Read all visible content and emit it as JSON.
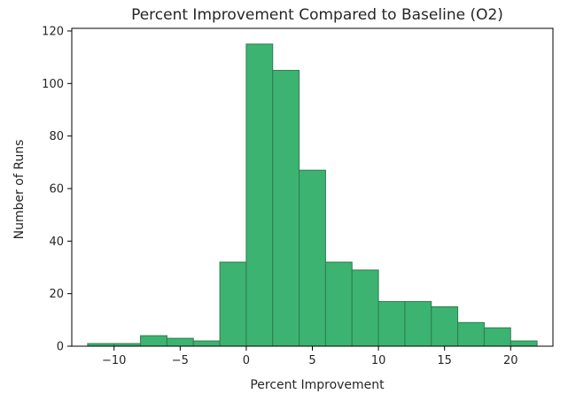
{
  "chart_data": {
    "type": "bar",
    "title": "Percent Improvement Compared to Baseline (O2)",
    "xlabel": "Percent Improvement",
    "ylabel": "Number of Runs",
    "xlim": [
      -13.2,
      23.2
    ],
    "ylim": [
      0,
      121
    ],
    "x_ticks": [
      -10,
      -5,
      0,
      5,
      10,
      15,
      20
    ],
    "x_tick_labels": [
      "−10",
      "−5",
      "0",
      "5",
      "10",
      "15",
      "20"
    ],
    "y_ticks": [
      0,
      20,
      40,
      60,
      80,
      100,
      120
    ],
    "grid": false,
    "bar_color": "#3cb371",
    "edge_color": "#2e7d4f",
    "bins": [
      {
        "x0": -12,
        "x1": -10,
        "value": 1
      },
      {
        "x0": -10,
        "x1": -8,
        "value": 1
      },
      {
        "x0": -8,
        "x1": -6,
        "value": 4
      },
      {
        "x0": -6,
        "x1": -4,
        "value": 3
      },
      {
        "x0": -4,
        "x1": -2,
        "value": 2
      },
      {
        "x0": -2,
        "x1": 0,
        "value": 32
      },
      {
        "x0": 0,
        "x1": 2,
        "value": 115
      },
      {
        "x0": 2,
        "x1": 4,
        "value": 105
      },
      {
        "x0": 4,
        "x1": 6,
        "value": 67
      },
      {
        "x0": 6,
        "x1": 8,
        "value": 32
      },
      {
        "x0": 8,
        "x1": 10,
        "value": 29
      },
      {
        "x0": 10,
        "x1": 12,
        "value": 17
      },
      {
        "x0": 12,
        "x1": 14,
        "value": 17
      },
      {
        "x0": 14,
        "x1": 16,
        "value": 15
      },
      {
        "x0": 16,
        "x1": 18,
        "value": 9
      },
      {
        "x0": 18,
        "x1": 20,
        "value": 7
      },
      {
        "x0": 20,
        "x1": 22,
        "value": 2
      }
    ]
  }
}
